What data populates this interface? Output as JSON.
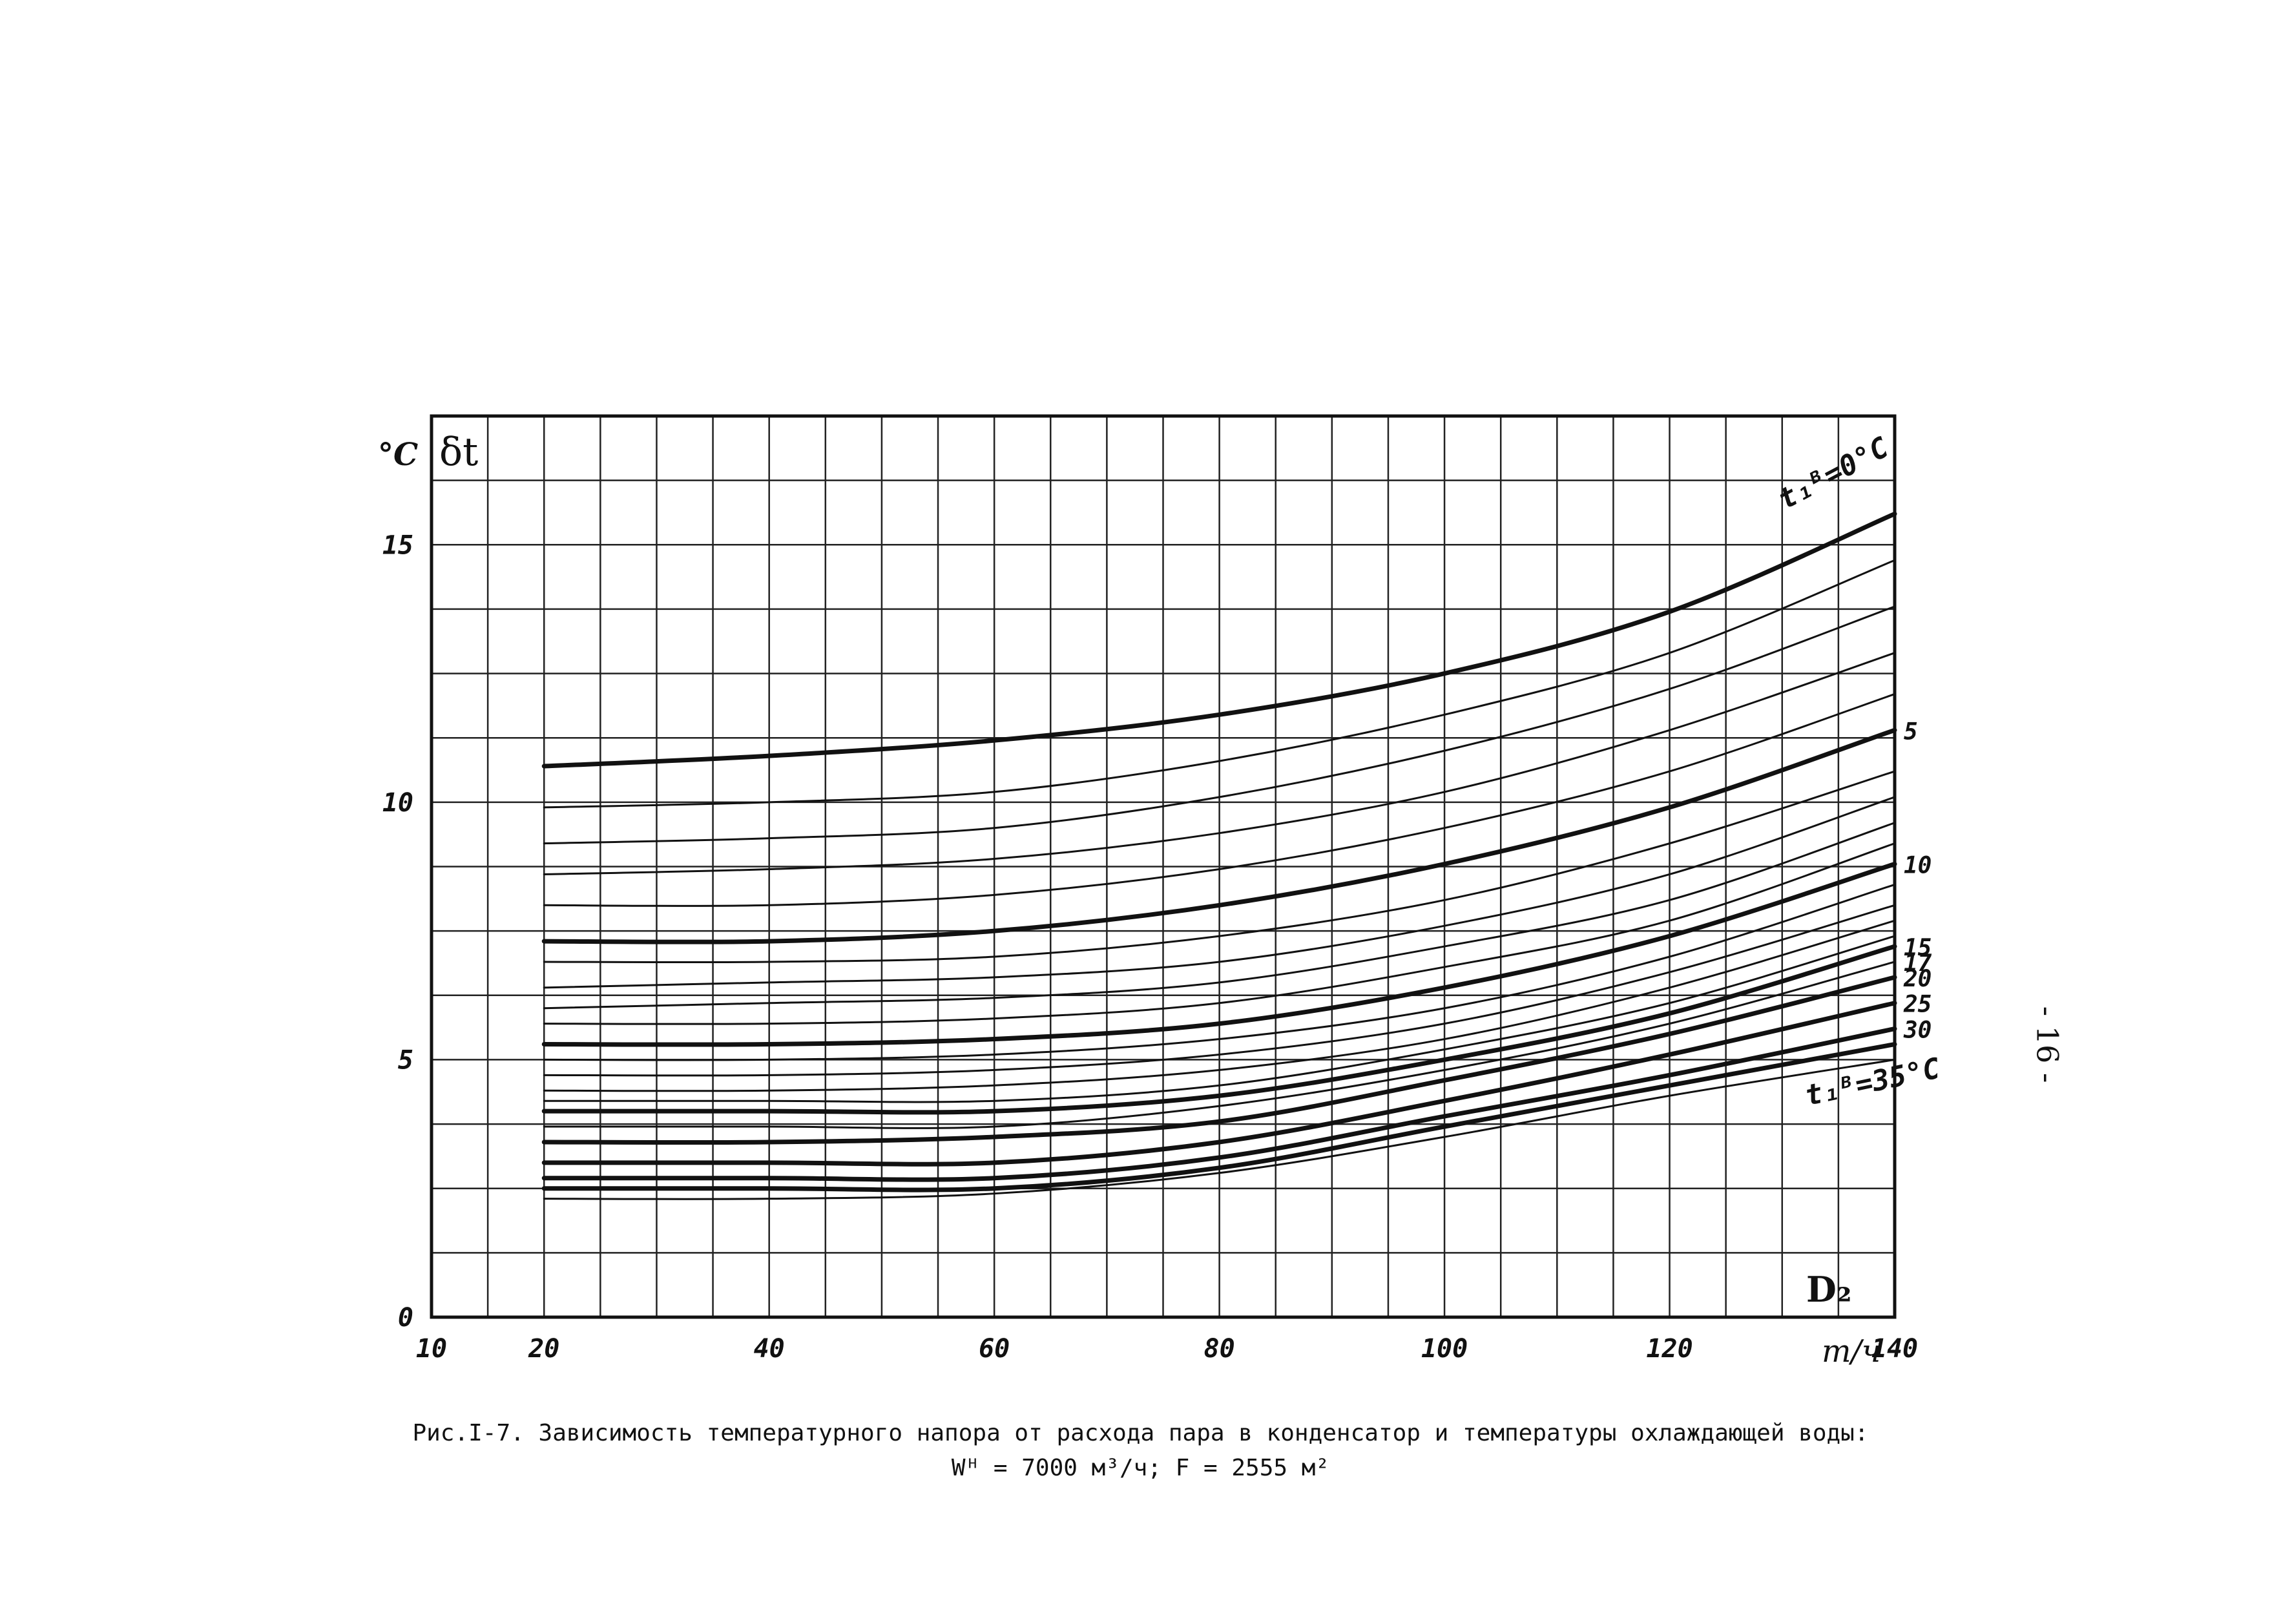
{
  "page": {
    "page_number": "- 16 -",
    "caption_line1": "Рис.I-7. Зависимость температурного напора от расхода пара в конденсатор и температуры охлаждающей воды:",
    "caption_line2": "Wᴴ = 7000 м³/ч;  F = 2555 м²"
  },
  "chart_data": {
    "type": "line",
    "title": "",
    "ylabel": "δt",
    "yunit": "°C",
    "xlabel": "D₂",
    "xunit": "т/ч",
    "xlim": [
      10,
      140
    ],
    "ylim": [
      0,
      17.5
    ],
    "x_ticks": [
      "10",
      "20",
      "40",
      "60",
      "80",
      "100",
      "120",
      "140"
    ],
    "y_ticks": [
      "0",
      "5",
      "10",
      "15"
    ],
    "grid": true,
    "x": [
      20,
      40,
      60,
      80,
      100,
      120,
      140
    ],
    "series": [
      {
        "name": "t₁ᴮ=0°C",
        "values": [
          10.7,
          10.9,
          11.2,
          11.7,
          12.5,
          13.7,
          15.6
        ],
        "bold": true
      },
      {
        "values": [
          9.9,
          10.0,
          10.2,
          10.8,
          11.7,
          12.9,
          14.7
        ],
        "bold": false
      },
      {
        "values": [
          9.2,
          9.3,
          9.5,
          10.1,
          11.0,
          12.2,
          13.8
        ],
        "bold": false
      },
      {
        "values": [
          8.6,
          8.7,
          8.9,
          9.4,
          10.2,
          11.4,
          12.9
        ],
        "bold": false
      },
      {
        "values": [
          8.0,
          8.0,
          8.2,
          8.7,
          9.5,
          10.6,
          12.1
        ],
        "bold": false
      },
      {
        "name": "5",
        "values": [
          7.3,
          7.3,
          7.5,
          8.0,
          8.8,
          9.9,
          11.4
        ],
        "bold": true
      },
      {
        "values": [
          6.9,
          6.9,
          7.0,
          7.4,
          8.1,
          9.2,
          10.6
        ],
        "bold": false
      },
      {
        "values": [
          6.4,
          6.5,
          6.6,
          6.9,
          7.6,
          8.6,
          10.1
        ],
        "bold": false
      },
      {
        "values": [
          6.0,
          6.1,
          6.2,
          6.5,
          7.2,
          8.1,
          9.6
        ],
        "bold": false
      },
      {
        "values": [
          5.7,
          5.7,
          5.8,
          6.1,
          6.8,
          7.7,
          9.2
        ],
        "bold": false
      },
      {
        "name": "10",
        "values": [
          5.3,
          5.3,
          5.4,
          5.7,
          6.4,
          7.4,
          8.8
        ],
        "bold": true
      },
      {
        "values": [
          5.0,
          5.0,
          5.1,
          5.4,
          6.0,
          7.0,
          8.4
        ],
        "bold": false
      },
      {
        "values": [
          4.7,
          4.7,
          4.8,
          5.1,
          5.7,
          6.7,
          8.0
        ],
        "bold": false
      },
      {
        "values": [
          4.4,
          4.4,
          4.5,
          4.8,
          5.4,
          6.4,
          7.7
        ],
        "bold": false
      },
      {
        "values": [
          4.2,
          4.2,
          4.2,
          4.5,
          5.2,
          6.1,
          7.4
        ],
        "bold": false
      },
      {
        "name": "15",
        "values": [
          4.0,
          4.0,
          4.0,
          4.3,
          5.0,
          5.9,
          7.2
        ],
        "bold": true
      },
      {
        "name": "17",
        "values": [
          3.7,
          3.7,
          3.7,
          4.1,
          4.8,
          5.7,
          6.9
        ],
        "bold": false
      },
      {
        "name": "20",
        "values": [
          3.4,
          3.4,
          3.5,
          3.8,
          4.6,
          5.5,
          6.6
        ],
        "bold": true
      },
      {
        "name": "25",
        "values": [
          3.0,
          3.0,
          3.0,
          3.4,
          4.2,
          5.1,
          6.1
        ],
        "bold": true
      },
      {
        "name": "30",
        "values": [
          2.7,
          2.7,
          2.7,
          3.1,
          3.9,
          4.7,
          5.6
        ],
        "bold": true
      },
      {
        "name": "t₁ᴮ=35°C",
        "values": [
          2.5,
          2.5,
          2.5,
          2.9,
          3.7,
          4.5,
          5.3
        ],
        "bold": true
      },
      {
        "values": [
          2.3,
          2.3,
          2.4,
          2.8,
          3.5,
          4.3,
          5.0
        ],
        "bold": false
      }
    ],
    "series_labels": [
      {
        "text": "t₁ᴮ=0°C",
        "series": 0
      },
      {
        "text": "5",
        "series": 5
      },
      {
        "text": "10",
        "series": 10
      },
      {
        "text": "15",
        "series": 15
      },
      {
        "text": "17",
        "series": 16
      },
      {
        "text": "20",
        "series": 17
      },
      {
        "text": "25",
        "series": 18
      },
      {
        "text": "30",
        "series": 19
      },
      {
        "text": "t₁ᴮ=35°C",
        "series": 20
      }
    ]
  }
}
